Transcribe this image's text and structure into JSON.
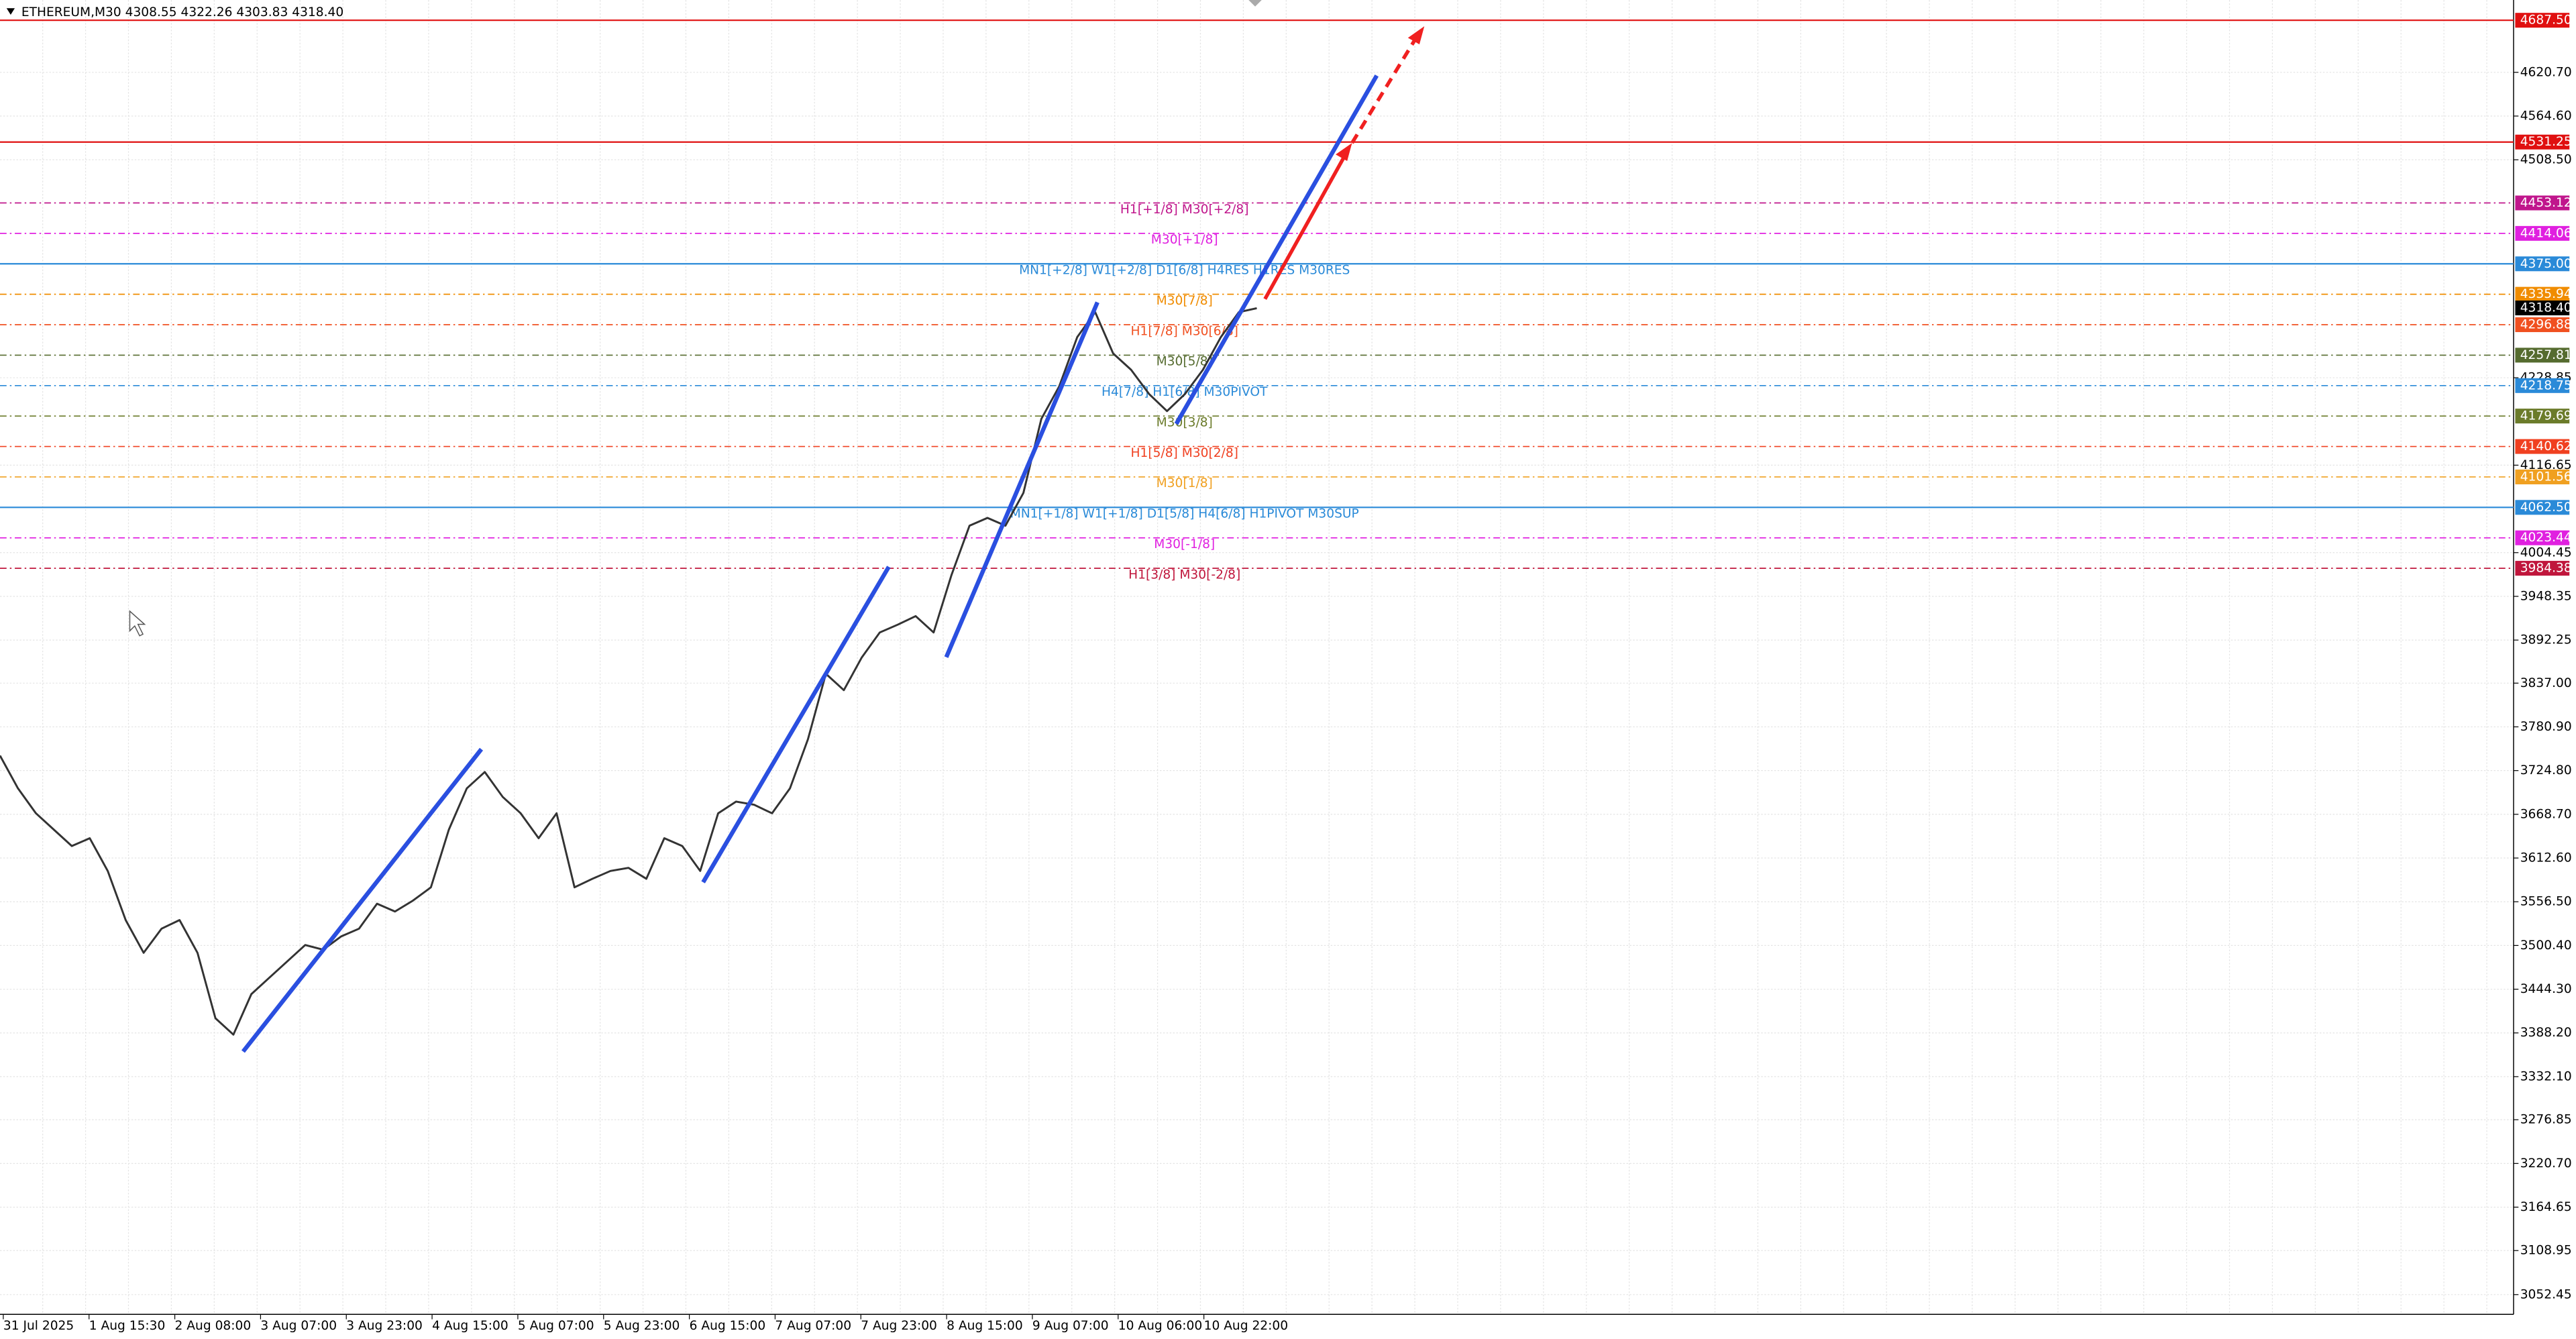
{
  "chart_data": {
    "type": "line",
    "title": "ETHEREUM,M30  4308.55 4322.26 4303.83 4318.40",
    "color": "#333333",
    "grid": true,
    "ylim": [
      3027.1,
      4713.5
    ],
    "yticks": [
      {
        "value": 4620.7,
        "label": "4620.70"
      },
      {
        "value": 4564.6,
        "label": "4564.60"
      },
      {
        "value": 4508.5,
        "label": "4508.50"
      },
      4228.85,
      4116.65,
      4004.45,
      3948.35,
      3892.25,
      {
        "value": 3837,
        "label": "3837.00"
      },
      {
        "value": 3780.9,
        "label": "3780.90"
      },
      {
        "value": 3724.8,
        "label": "3724.80"
      },
      {
        "value": 3668.7,
        "label": "3668.70"
      },
      {
        "value": 3612.6,
        "label": "3612.60"
      },
      {
        "value": 3556.5,
        "label": "3556.50"
      },
      {
        "value": 3500.4,
        "label": "3500.40"
      },
      {
        "value": 3444.3,
        "label": "3444.30"
      },
      {
        "value": 3388.2,
        "label": "3388.20"
      },
      {
        "value": 3332.1,
        "label": "3332.10"
      },
      3276.85,
      {
        "value": 3220.7,
        "label": "3220.70"
      },
      3164.65,
      3108.95,
      3052.45
    ],
    "x_labels": [
      "31 Jul 2025",
      "1 Aug 15:30",
      "2 Aug 08:00",
      "3 Aug 07:00",
      "3 Aug 23:00",
      "4 Aug 15:00",
      "5 Aug 07:00",
      "5 Aug 23:00",
      "6 Aug 15:00",
      "7 Aug 07:00",
      "7 Aug 23:00",
      "8 Aug 15:00",
      "9 Aug 07:00",
      "10 Aug 06:00",
      "10 Aug 22:00"
    ],
    "values": [
      3744,
      3702,
      3670,
      3649,
      3628,
      3638,
      3596,
      3533,
      3491,
      3522,
      3533,
      3491,
      3407,
      3386,
      3438,
      3459,
      3480,
      3501,
      3495,
      3512,
      3522,
      3554,
      3544,
      3558,
      3575,
      3649,
      3702,
      3723,
      3691,
      3670,
      3638,
      3670,
      3575,
      3586,
      3596,
      3600,
      3586,
      3638,
      3628,
      3596,
      3670,
      3685,
      3681,
      3670,
      3702,
      3765,
      3849,
      3828,
      3870,
      3902,
      3912,
      3923,
      3902,
      3976,
      4039,
      4049,
      4039,
      4081,
      4176,
      4218,
      4281,
      4313,
      4260,
      4239,
      4208,
      4186,
      4208,
      4239,
      4281,
      4313,
      4318
    ],
    "levels": [
      {
        "value": 4687.5,
        "tag": "4687.50",
        "color": "#e01010",
        "style": "solid"
      },
      {
        "value": 4531.25,
        "tag": "4531.25",
        "color": "#e01010",
        "style": "solid"
      },
      {
        "value": 4453.12,
        "tag": "4453.12",
        "color": "#c0168c",
        "style": "dashdot",
        "text": "H1[+1/8] M30[+2/8]"
      },
      {
        "value": 4414.06,
        "tag": "4414.06",
        "color": "#e020e0",
        "style": "dashdot",
        "text": "M30[+1/8]"
      },
      {
        "value": 4375,
        "tag": "4375.00",
        "color": "#2a8ad8",
        "style": "solid",
        "text": "MN1[+2/8] W1[+2/8] D1[6/8] H4RES H1RES M30RES"
      },
      {
        "value": 4335.94,
        "tag": "4335.94",
        "color": "#f08c00",
        "style": "dashdot",
        "text": "M30[7/8]"
      },
      {
        "value": 4318.4,
        "tag": "4318.40",
        "color": "#000000",
        "style": "none"
      },
      {
        "value": 4296.88,
        "tag": "4296.88",
        "color": "#f05020",
        "style": "dashdot",
        "text": "H1[7/8] M30[6/8]"
      },
      {
        "value": 4257.81,
        "tag": "4257.81",
        "color": "#556b2f",
        "style": "dashdot",
        "text": "M30[5/8]"
      },
      {
        "value": 4218.75,
        "tag": "4218.75",
        "color": "#2a8ad8",
        "style": "dashdot",
        "text": "H4[7/8] H1[6/8] M30PIVOT"
      },
      {
        "value": 4179.69,
        "tag": "4179.69",
        "color": "#6b7b2a",
        "style": "dashdot",
        "text": "M30[3/8]"
      },
      {
        "value": 4140.62,
        "tag": "4140.62",
        "color": "#f04020",
        "style": "dashdot",
        "text": "H1[5/8] M30[2/8]"
      },
      {
        "value": 4101.56,
        "tag": "4101.56",
        "color": "#f0a020",
        "style": "dashdot",
        "text": "M30[1/8]"
      },
      {
        "value": 4062.5,
        "tag": "4062.50",
        "color": "#2a8ad8",
        "style": "solid",
        "text": "MN1[+1/8] W1[+1/8] D1[5/8] H4[6/8] H1PIVOT M30SUP"
      },
      {
        "value": 4023.44,
        "tag": "4023.44",
        "color": "#e020e0",
        "style": "dashdot",
        "text": "M30[-1/8]"
      },
      {
        "value": 3984.38,
        "tag": "3984.38",
        "color": "#c0163c",
        "style": "dashdot",
        "text": "H1[3/8] M30[-2/8]"
      }
    ]
  }
}
